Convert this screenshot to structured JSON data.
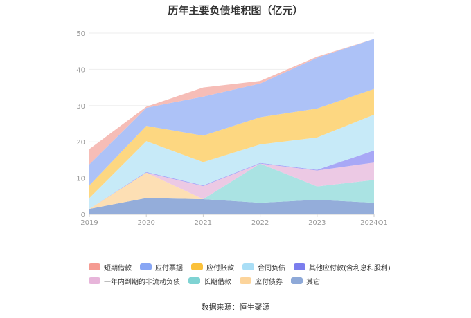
{
  "chart_data": {
    "type": "area",
    "title": "历年主要负债堆积图（亿元）",
    "source": "数据来源：恒生聚源",
    "categories": [
      "2019",
      "2020",
      "2021",
      "2022",
      "2023",
      "2024Q1"
    ],
    "ylim": [
      0,
      50
    ],
    "yticks": [
      "0",
      "10",
      "20",
      "30",
      "40",
      "50"
    ],
    "grid": true,
    "stacked": true,
    "legend_position": "bottom",
    "series": [
      {
        "name": "其它",
        "color": "#8ea9d8",
        "values": [
          1.5,
          4.5,
          4.2,
          3.2,
          4.0,
          3.2
        ]
      },
      {
        "name": "应付债券",
        "color": "#fdddb0",
        "values": [
          0,
          7.0,
          0,
          0,
          0,
          0
        ]
      },
      {
        "name": "长期借款",
        "color": "#a5e2e2",
        "values": [
          0,
          0,
          0,
          10.8,
          3.7,
          6.3
        ]
      },
      {
        "name": "一年内到期的非流动负债",
        "color": "#ebc6e3",
        "values": [
          0,
          0,
          3.6,
          0,
          4.4,
          4.8
        ]
      },
      {
        "name": "其他应付款(含利息和股利)",
        "color": "#a3a3f5",
        "values": [
          0,
          0.2,
          0.2,
          0.2,
          0.2,
          3.3
        ]
      },
      {
        "name": "合同负债",
        "color": "#c4e9f8",
        "values": [
          3.0,
          8.5,
          6.4,
          5.1,
          8.9,
          9.9
        ]
      },
      {
        "name": "应付账款",
        "color": "#fdd57a",
        "values": [
          3.5,
          4.2,
          7.3,
          7.5,
          8.0,
          7.1
        ]
      },
      {
        "name": "应付票据",
        "color": "#a9bff7",
        "values": [
          5.8,
          5.0,
          10.8,
          9.3,
          14.0,
          13.8
        ]
      },
      {
        "name": "短期借款",
        "color": "#f6b9b3",
        "values": [
          4.2,
          0.3,
          2.5,
          0.7,
          0.3,
          0
        ]
      }
    ],
    "legend_rows": [
      [
        {
          "name": "短期借款",
          "color": "#f59b92"
        },
        {
          "name": "应付票据",
          "color": "#88a6f4"
        },
        {
          "name": "应付账款",
          "color": "#fbc13a"
        },
        {
          "name": "合同负债",
          "color": "#a9def6"
        },
        {
          "name": "其他应付款(含利息和股利)",
          "color": "#7b7ded"
        }
      ],
      [
        {
          "name": "一年内到期的非流动负债",
          "color": "#e7b5da"
        },
        {
          "name": "长期借款",
          "color": "#7fd3d3"
        },
        {
          "name": "应付债券",
          "color": "#fcd49b"
        },
        {
          "name": "其它",
          "color": "#8ea9d8"
        }
      ]
    ]
  }
}
